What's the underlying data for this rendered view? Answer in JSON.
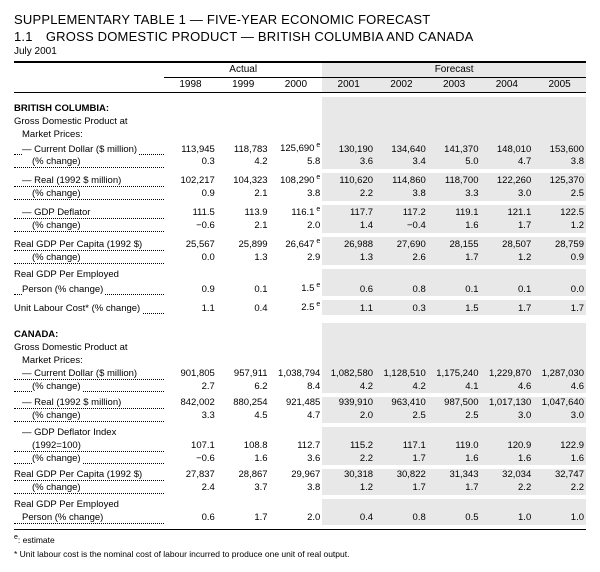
{
  "titles": {
    "supp": "SUPPLEMENTARY TABLE 1 — FIVE-YEAR ECONOMIC FORECAST",
    "sec": "1.1 GROSS DOMESTIC PRODUCT — BRITISH COLUMBIA AND CANADA",
    "date": "July 2001"
  },
  "headers": {
    "actual": "Actual",
    "forecast": "Forecast",
    "years": [
      "1998",
      "1999",
      "2000",
      "2001",
      "2002",
      "2003",
      "2004",
      "2005"
    ]
  },
  "bc": {
    "heading": "BRITISH COLUMBIA:",
    "gdp_label": "Gross Domestic Product at",
    "gdp_label2": "Market Prices:",
    "rows": [
      {
        "l": "— Current Dollar ($ million)",
        "v": [
          "113,945",
          "118,783",
          "125,690",
          "130,190",
          "134,640",
          "141,370",
          "148,010",
          "153,600"
        ],
        "sup": [
          0,
          0,
          1,
          0,
          0,
          0,
          0,
          0
        ]
      },
      {
        "l": "(% change)",
        "v": [
          "0.3",
          "4.2",
          "5.8",
          "3.6",
          "3.4",
          "5.0",
          "4.7",
          "3.8"
        ],
        "indent": 2
      },
      {
        "gap": 1
      },
      {
        "l": "— Real (1992 $ million)",
        "v": [
          "102,217",
          "104,323",
          "108,290",
          "110,620",
          "114,860",
          "118,700",
          "122,260",
          "125,370"
        ],
        "sup": [
          0,
          0,
          1,
          0,
          0,
          0,
          0,
          0
        ]
      },
      {
        "l": "(% change)",
        "v": [
          "0.9",
          "2.1",
          "3.8",
          "2.2",
          "3.8",
          "3.3",
          "3.0",
          "2.5"
        ],
        "indent": 2
      },
      {
        "gap": 1
      },
      {
        "l": "— GDP Deflator",
        "v": [
          "111.5",
          "113.9",
          "116.1",
          "117.7",
          "117.2",
          "119.1",
          "121.1",
          "122.5"
        ],
        "sup": [
          0,
          0,
          1,
          0,
          0,
          0,
          0,
          0
        ]
      },
      {
        "l": "(% change)",
        "v": [
          "−0.6",
          "2.1",
          "2.0",
          "1.4",
          "−0.4",
          "1.6",
          "1.7",
          "1.2"
        ],
        "indent": 2
      },
      {
        "gap": 1
      },
      {
        "l": "Real GDP Per Capita (1992 $)",
        "v": [
          "25,567",
          "25,899",
          "26,647",
          "26,988",
          "27,690",
          "28,155",
          "28,507",
          "28,759"
        ],
        "sup": [
          0,
          0,
          1,
          0,
          0,
          0,
          0,
          0
        ],
        "indent": 0
      },
      {
        "l": "(% change)",
        "v": [
          "0.0",
          "1.3",
          "2.9",
          "1.3",
          "2.6",
          "1.7",
          "1.2",
          "0.9"
        ],
        "indent": 2
      },
      {
        "gap": 1
      },
      {
        "l": "Real GDP Per Employed",
        "nl": 1,
        "indent": 0
      },
      {
        "l": "Person (% change)",
        "v": [
          "0.9",
          "0.1",
          "1.5",
          "0.6",
          "0.8",
          "0.1",
          "0.1",
          "0.0"
        ],
        "sup": [
          0,
          0,
          1,
          0,
          0,
          0,
          0,
          0
        ],
        "indent": 1
      },
      {
        "gap": 1
      },
      {
        "l": "Unit Labour Cost* (% change)",
        "v": [
          "1.1",
          "0.4",
          "2.5",
          "1.1",
          "0.3",
          "1.5",
          "1.7",
          "1.7"
        ],
        "sup": [
          0,
          0,
          1,
          0,
          0,
          0,
          0,
          0
        ],
        "indent": 0
      }
    ]
  },
  "ca": {
    "heading": "CANADA:",
    "gdp_label": "Gross Domestic Product at",
    "gdp_label2": "Market Prices:",
    "rows": [
      {
        "l": "— Current Dollar ($ million)",
        "v": [
          "901,805",
          "957,911",
          "1,038,794",
          "1,082,580",
          "1,128,510",
          "1,175,240",
          "1,229,870",
          "1,287,030"
        ]
      },
      {
        "l": "(% change)",
        "v": [
          "2.7",
          "6.2",
          "8.4",
          "4.2",
          "4.2",
          "4.1",
          "4.6",
          "4.6"
        ],
        "indent": 2
      },
      {
        "gap": 1
      },
      {
        "l": "— Real (1992 $ million)",
        "v": [
          "842,002",
          "880,254",
          "921,485",
          "939,910",
          "963,410",
          "987,500",
          "1,017,130",
          "1,047,640"
        ]
      },
      {
        "l": "(% change)",
        "v": [
          "3.3",
          "4.5",
          "4.7",
          "2.0",
          "2.5",
          "2.5",
          "3.0",
          "3.0"
        ],
        "indent": 2
      },
      {
        "gap": 1
      },
      {
        "l": "— GDP Deflator Index",
        "nl": 1
      },
      {
        "l": "(1992=100)",
        "v": [
          "107.1",
          "108.8",
          "112.7",
          "115.2",
          "117.1",
          "119.0",
          "120.9",
          "122.9"
        ],
        "indent": 2
      },
      {
        "l": "(% change)",
        "v": [
          "−0.6",
          "1.6",
          "3.6",
          "2.2",
          "1.7",
          "1.6",
          "1.6",
          "1.6"
        ],
        "indent": 2
      },
      {
        "gap": 1
      },
      {
        "l": "Real GDP Per Capita (1992 $)",
        "v": [
          "27,837",
          "28,867",
          "29,967",
          "30,318",
          "30,822",
          "31,343",
          "32,034",
          "32,747"
        ],
        "indent": 0
      },
      {
        "l": "(% change)",
        "v": [
          "2.4",
          "3.7",
          "3.8",
          "1.2",
          "1.7",
          "1.7",
          "2.2",
          "2.2"
        ],
        "indent": 2
      },
      {
        "gap": 1
      },
      {
        "l": "Real GDP Per Employed",
        "nl": 1,
        "indent": 0
      },
      {
        "l": "Person (% change)",
        "v": [
          "0.6",
          "1.7",
          "2.0",
          "0.4",
          "0.8",
          "0.5",
          "1.0",
          "1.0"
        ],
        "indent": 1
      }
    ]
  },
  "footnotes": {
    "e": "e: estimate",
    "star": "* Unit labour cost is the nominal cost of labour incurred to produce one unit of real output."
  },
  "style": {
    "forecast_bg": "#e8e8e8",
    "text_color": "#000000",
    "font_family": "Arial, Helvetica, sans-serif"
  }
}
